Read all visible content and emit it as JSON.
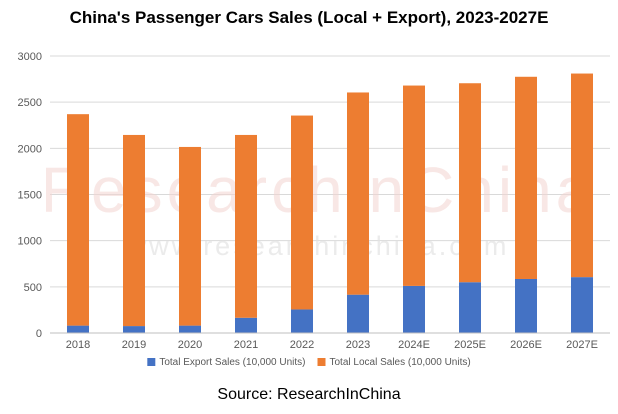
{
  "chart_data": {
    "type": "bar",
    "stacked": true,
    "title": "China's Passenger Cars Sales (Local + Export), 2023-2027E",
    "categories": [
      "2018",
      "2019",
      "2020",
      "2021",
      "2022",
      "2023",
      "2024E",
      "2025E",
      "2026E",
      "2027E"
    ],
    "series": [
      {
        "name": "Total Export Sales (10,000 Units)",
        "color": "#4472c4",
        "values": [
          80,
          75,
          80,
          165,
          255,
          415,
          510,
          550,
          585,
          605
        ]
      },
      {
        "name": "Total Local Sales (10,000 Units)",
        "color": "#ed7d31",
        "values": [
          2290,
          2070,
          1935,
          1980,
          2100,
          2190,
          2170,
          2155,
          2190,
          2205
        ]
      }
    ],
    "ylim": [
      0,
      3000
    ],
    "yticks": [
      0,
      500,
      1000,
      1500,
      2000,
      2500,
      3000
    ],
    "grid": true,
    "legend": "bottom",
    "watermark": {
      "brand": "ResearchInChina",
      "url": "www.researchinchina.com"
    }
  },
  "source": "Source: ResearchInChina"
}
